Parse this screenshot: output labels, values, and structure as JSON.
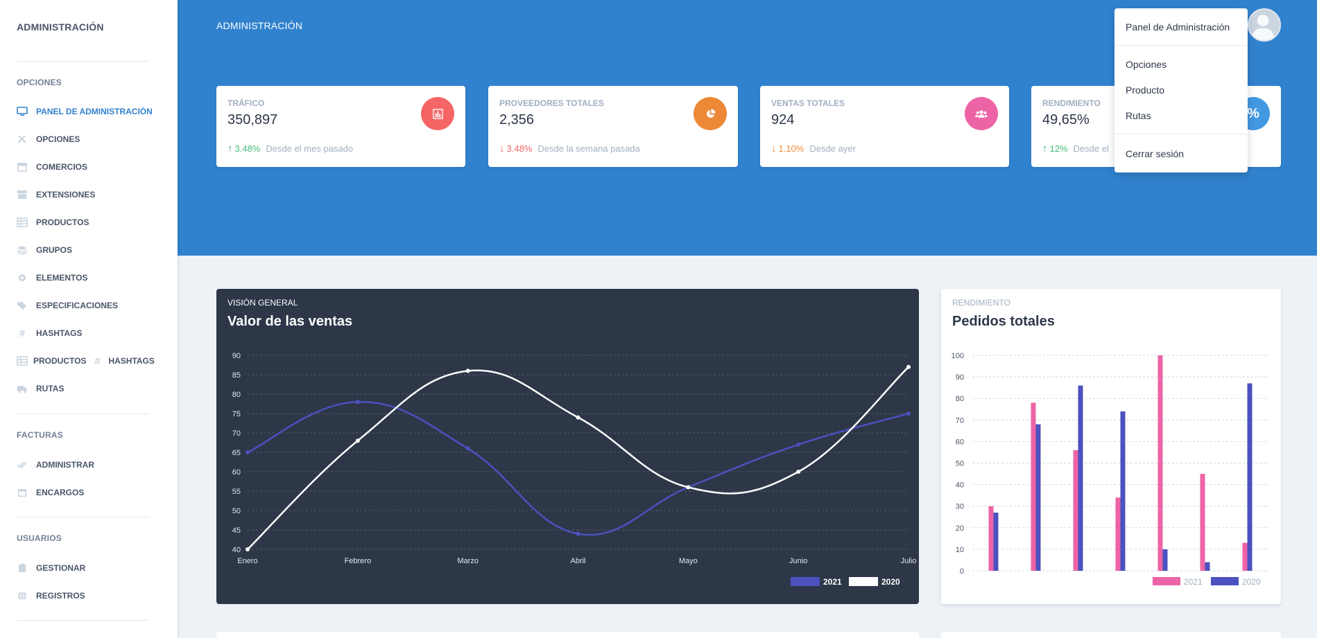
{
  "sidebar": {
    "brand": "ADMINISTRACIÓN",
    "sections": [
      {
        "heading": "OPCIONES",
        "items": [
          {
            "label": "PANEL DE ADMINISTRACIÓN",
            "icon": "monitor-icon",
            "active": true
          },
          {
            "label": "OPCIONES",
            "icon": "tools-icon"
          },
          {
            "label": "COMERCIOS",
            "icon": "store-icon"
          },
          {
            "label": "EXTENSIONES",
            "icon": "box-icon"
          },
          {
            "label": "PRODUCTOS",
            "icon": "table-icon"
          },
          {
            "label": "GRUPOS",
            "icon": "layers-icon"
          },
          {
            "label": "ELEMENTOS",
            "icon": "gear-icon"
          },
          {
            "label": "ESPECIFICACIONES",
            "icon": "tags-icon"
          },
          {
            "label": "HASHTAGS",
            "icon": "hashtag-icon"
          },
          {
            "label": "PRODUCTOS",
            "label2": "HASHTAGS",
            "icon": "table-icon",
            "icon2": "hashtag-icon"
          },
          {
            "label": "RUTAS",
            "icon": "truck-icon"
          }
        ]
      },
      {
        "heading": "FACTURAS",
        "items": [
          {
            "label": "ADMINISTRAR",
            "icon": "check-double-icon"
          },
          {
            "label": "ENCARGOS",
            "icon": "calendar-icon"
          }
        ]
      },
      {
        "heading": "USUARIOS",
        "items": [
          {
            "label": "GESTIONAR",
            "icon": "clipboard-icon"
          },
          {
            "label": "REGISTROS",
            "icon": "globe-icon"
          }
        ]
      }
    ]
  },
  "header": {
    "title": "ADMINISTRACIÓN"
  },
  "stats": [
    {
      "label": "TRÁFICO",
      "value": "350,897",
      "change": "3.48%",
      "direction": "up",
      "note": "Desde el mes pasado",
      "color": "#f56565",
      "icon": "chart-bar-icon",
      "change_color": "#48bb78"
    },
    {
      "label": "PROVEEDORES TOTALES",
      "value": "2,356",
      "change": "3.48%",
      "direction": "down",
      "note": "Desde la semana pasada",
      "color": "#ed8936",
      "icon": "chart-pie-icon",
      "change_color": "#f56565"
    },
    {
      "label": "VENTAS TOTALES",
      "value": "924",
      "change": "1.10%",
      "direction": "down",
      "note": "Desde ayer",
      "color": "#ed64a6",
      "icon": "users-icon",
      "change_color": "#ed8936"
    },
    {
      "label": "RENDIMIENTO",
      "value": "49,65%",
      "change": "12%",
      "direction": "up",
      "note": "Desde el",
      "color": "#4299e1",
      "icon": "percent-icon",
      "icon_text": "%",
      "change_color": "#48bb78"
    }
  ],
  "dropdown": {
    "items": [
      "Panel de Administración",
      "Opciones",
      "Producto",
      "Rutas",
      "Cerrar sesión"
    ]
  },
  "line_card": {
    "subtitle": "VISIÓN GENERAL",
    "title": "Valor de las ventas"
  },
  "bar_card": {
    "subtitle": "RENDIMIENTO",
    "title": "Pedidos totales"
  },
  "chart_data": [
    {
      "type": "line",
      "title": "Valor de las ventas",
      "categories": [
        "Enero",
        "Febrero",
        "Marzo",
        "Abril",
        "Mayo",
        "Junio",
        "Julio"
      ],
      "series": [
        {
          "name": "2021",
          "values": [
            65,
            78,
            66,
            44,
            56,
            67,
            75
          ],
          "color": "#4c51bf"
        },
        {
          "name": "2020",
          "values": [
            40,
            68,
            86,
            74,
            56,
            60,
            87
          ],
          "color": "#ffffff"
        }
      ],
      "yticks": [
        40,
        45,
        50,
        55,
        60,
        65,
        70,
        75,
        80,
        85,
        90
      ],
      "ylim": [
        40,
        90
      ],
      "legend": "bottom-right",
      "grid": true
    },
    {
      "type": "bar",
      "title": "Pedidos totales",
      "categories": [
        "",
        "",
        "",
        "",
        "",
        "",
        ""
      ],
      "series": [
        {
          "name": "2021",
          "values": [
            30,
            78,
            56,
            34,
            100,
            45,
            13
          ],
          "color": "#ed64a6"
        },
        {
          "name": "2020",
          "values": [
            27,
            68,
            86,
            74,
            10,
            4,
            87
          ],
          "color": "#4c51bf"
        }
      ],
      "yticks": [
        0,
        10,
        20,
        30,
        40,
        50,
        60,
        70,
        80,
        90,
        100
      ],
      "ylim": [
        0,
        100
      ],
      "legend": "bottom-right",
      "grid": true
    }
  ]
}
